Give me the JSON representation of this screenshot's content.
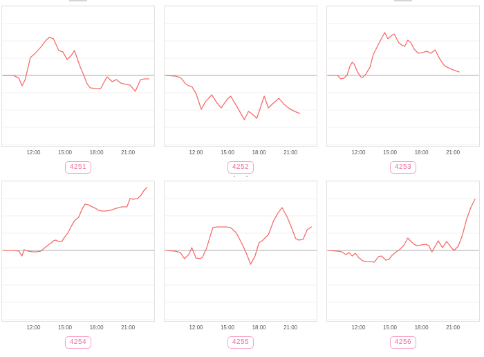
{
  "page": {
    "background": "#ffffff",
    "layout": {
      "rows": 2,
      "columns": 3,
      "grid": "horizontal-gridlines-only"
    }
  },
  "colors": {
    "line": "#f56c6c",
    "zero_line": "#a8a8a8",
    "gridline": "#f2f2f2",
    "panel_border": "#e2e2e2",
    "badge_text": "#ef6a9e",
    "badge_border": "#f7a1c4",
    "tick_text": "#555555"
  },
  "chart_data": [
    {
      "type": "line",
      "id_label": "4251",
      "title": "",
      "xlabel": "",
      "ylabel": "",
      "x_range": [
        9.0,
        23.5
      ],
      "ylim": [
        -101,
        101
      ],
      "zero_baseline": true,
      "clipped_title_fragment": "bar",
      "x_ticks": [
        12,
        15,
        18,
        21
      ],
      "x_tick_labels": [
        "12:00",
        "15:00",
        "18:00",
        "21:00"
      ],
      "series": [
        [
          9.1,
          0
        ],
        [
          10.1,
          0
        ],
        [
          10.6,
          -4
        ],
        [
          10.9,
          -15
        ],
        [
          11.2,
          -6
        ],
        [
          11.7,
          26
        ],
        [
          12.1,
          31
        ],
        [
          12.7,
          41
        ],
        [
          13.2,
          51
        ],
        [
          13.5,
          55
        ],
        [
          13.9,
          53
        ],
        [
          14.4,
          36
        ],
        [
          14.8,
          34
        ],
        [
          15.2,
          23
        ],
        [
          15.6,
          29
        ],
        [
          15.9,
          36
        ],
        [
          16.4,
          14
        ],
        [
          16.8,
          0
        ],
        [
          17.1,
          -12
        ],
        [
          17.4,
          -18
        ],
        [
          18.0,
          -19
        ],
        [
          18.4,
          -19
        ],
        [
          19.0,
          -2
        ],
        [
          19.5,
          -9
        ],
        [
          19.9,
          -6
        ],
        [
          20.3,
          -11
        ],
        [
          20.8,
          -13
        ],
        [
          21.2,
          -14
        ],
        [
          21.7,
          -23
        ],
        [
          22.2,
          -6
        ],
        [
          22.6,
          -5
        ],
        [
          23.0,
          -5
        ]
      ]
    },
    {
      "type": "line",
      "id_label": "4252",
      "title": "",
      "xlabel": "",
      "ylabel": "",
      "x_range": [
        9.0,
        23.5
      ],
      "ylim": [
        -101,
        101
      ],
      "zero_baseline": true,
      "clipped_title_fragment": "",
      "x_ticks": [
        12,
        15,
        18,
        21
      ],
      "x_tick_labels": [
        "12:00",
        "15:00",
        "18:00",
        "21:00"
      ],
      "series": [
        [
          9.1,
          0
        ],
        [
          10.0,
          -1
        ],
        [
          10.5,
          -3
        ],
        [
          10.8,
          -8
        ],
        [
          11.0,
          -12
        ],
        [
          11.3,
          -15
        ],
        [
          11.6,
          -16
        ],
        [
          12.0,
          -26
        ],
        [
          12.5,
          -49
        ],
        [
          12.9,
          -38
        ],
        [
          13.5,
          -28
        ],
        [
          14.0,
          -40
        ],
        [
          14.4,
          -47
        ],
        [
          15.0,
          -34
        ],
        [
          15.3,
          -30
        ],
        [
          15.9,
          -45
        ],
        [
          16.6,
          -64
        ],
        [
          17.0,
          -52
        ],
        [
          17.3,
          -55
        ],
        [
          17.8,
          -62
        ],
        [
          18.5,
          -30
        ],
        [
          18.9,
          -47
        ],
        [
          19.3,
          -41
        ],
        [
          19.9,
          -33
        ],
        [
          20.4,
          -42
        ],
        [
          20.9,
          -48
        ],
        [
          21.4,
          -52
        ],
        [
          21.9,
          -55
        ]
      ]
    },
    {
      "type": "line",
      "id_label": "4253",
      "title": "",
      "xlabel": "",
      "ylabel": "",
      "x_range": [
        9.0,
        23.5
      ],
      "ylim": [
        -101,
        101
      ],
      "zero_baseline": true,
      "clipped_title_fragment": "bar",
      "x_ticks": [
        12,
        15,
        18,
        21
      ],
      "x_tick_labels": [
        "12:00",
        "15:00",
        "18:00",
        "21:00"
      ],
      "series": [
        [
          9.1,
          0
        ],
        [
          10.0,
          0
        ],
        [
          10.3,
          -5
        ],
        [
          10.6,
          -4
        ],
        [
          10.9,
          0
        ],
        [
          11.2,
          14
        ],
        [
          11.4,
          19
        ],
        [
          11.6,
          16
        ],
        [
          11.9,
          5
        ],
        [
          12.2,
          -2
        ],
        [
          12.4,
          -3
        ],
        [
          12.7,
          2
        ],
        [
          13.1,
          12
        ],
        [
          13.4,
          30
        ],
        [
          13.9,
          45
        ],
        [
          14.5,
          62
        ],
        [
          14.8,
          53
        ],
        [
          15.1,
          57
        ],
        [
          15.4,
          60
        ],
        [
          15.8,
          48
        ],
        [
          16.1,
          44
        ],
        [
          16.4,
          42
        ],
        [
          16.7,
          51
        ],
        [
          17.0,
          47
        ],
        [
          17.3,
          38
        ],
        [
          17.7,
          32
        ],
        [
          18.1,
          33
        ],
        [
          18.5,
          35
        ],
        [
          18.9,
          32
        ],
        [
          19.3,
          37
        ],
        [
          19.7,
          25
        ],
        [
          20.2,
          14
        ],
        [
          20.7,
          10
        ],
        [
          21.2,
          7
        ],
        [
          21.6,
          5
        ]
      ]
    },
    {
      "type": "line",
      "id_label": "4254",
      "title": "",
      "xlabel": "",
      "ylabel": "",
      "x_range": [
        9.0,
        23.5
      ],
      "ylim": [
        -101,
        101
      ],
      "zero_baseline": true,
      "clipped_title_fragment": "",
      "x_ticks": [
        12,
        15,
        18,
        21
      ],
      "x_tick_labels": [
        "12:00",
        "15:00",
        "18:00",
        "21:00"
      ],
      "series": [
        [
          9.1,
          0
        ],
        [
          10.1,
          0
        ],
        [
          10.6,
          -1
        ],
        [
          10.9,
          -8
        ],
        [
          11.1,
          1
        ],
        [
          11.5,
          -1
        ],
        [
          11.9,
          -2
        ],
        [
          12.3,
          -2
        ],
        [
          12.7,
          -1
        ],
        [
          13.0,
          3
        ],
        [
          13.4,
          8
        ],
        [
          13.7,
          11
        ],
        [
          13.9,
          14
        ],
        [
          14.1,
          15
        ],
        [
          14.4,
          13
        ],
        [
          14.7,
          13
        ],
        [
          14.9,
          18
        ],
        [
          15.3,
          26
        ],
        [
          15.6,
          35
        ],
        [
          15.9,
          43
        ],
        [
          16.3,
          48
        ],
        [
          16.6,
          59
        ],
        [
          16.9,
          67
        ],
        [
          17.2,
          66
        ],
        [
          17.6,
          63
        ],
        [
          17.9,
          61
        ],
        [
          18.2,
          58
        ],
        [
          18.5,
          57
        ],
        [
          18.9,
          57
        ],
        [
          19.3,
          58
        ],
        [
          19.9,
          61
        ],
        [
          20.4,
          63
        ],
        [
          20.9,
          63
        ],
        [
          21.2,
          75
        ],
        [
          21.5,
          74
        ],
        [
          21.9,
          75
        ],
        [
          22.2,
          79
        ],
        [
          22.5,
          86
        ],
        [
          22.8,
          91
        ]
      ]
    },
    {
      "type": "line",
      "id_label": "4255",
      "title": "",
      "xlabel": "",
      "ylabel": "",
      "x_range": [
        9.0,
        23.5
      ],
      "ylim": [
        -101,
        101
      ],
      "zero_baseline": true,
      "clipped_title_fragment": "dots",
      "x_ticks": [
        12,
        15,
        18,
        21
      ],
      "x_tick_labels": [
        "12:00",
        "15:00",
        "18:00",
        "21:00"
      ],
      "series": [
        [
          9.1,
          0
        ],
        [
          10.0,
          -1
        ],
        [
          10.5,
          -3
        ],
        [
          10.9,
          -12
        ],
        [
          11.3,
          -6
        ],
        [
          11.6,
          4
        ],
        [
          12.0,
          -11
        ],
        [
          12.4,
          -12
        ],
        [
          12.6,
          -10
        ],
        [
          13.0,
          3
        ],
        [
          13.3,
          18
        ],
        [
          13.6,
          33
        ],
        [
          14.0,
          34
        ],
        [
          14.4,
          34
        ],
        [
          14.9,
          34
        ],
        [
          15.3,
          33
        ],
        [
          15.8,
          26
        ],
        [
          16.1,
          18
        ],
        [
          16.5,
          6
        ],
        [
          16.8,
          -4
        ],
        [
          17.2,
          -20
        ],
        [
          17.6,
          -9
        ],
        [
          18.0,
          11
        ],
        [
          18.3,
          14
        ],
        [
          18.9,
          23
        ],
        [
          19.4,
          43
        ],
        [
          19.8,
          54
        ],
        [
          20.2,
          62
        ],
        [
          20.7,
          48
        ],
        [
          21.1,
          33
        ],
        [
          21.5,
          17
        ],
        [
          21.8,
          15
        ],
        [
          22.2,
          16
        ],
        [
          22.6,
          30
        ],
        [
          23.0,
          34
        ]
      ]
    },
    {
      "type": "line",
      "id_label": "4256",
      "title": "",
      "xlabel": "",
      "ylabel": "",
      "x_range": [
        9.0,
        23.5
      ],
      "ylim": [
        -101,
        101
      ],
      "zero_baseline": true,
      "clipped_title_fragment": "",
      "x_ticks": [
        12,
        15,
        18,
        21
      ],
      "x_tick_labels": [
        "12:00",
        "15:00",
        "18:00",
        "21:00"
      ],
      "series": [
        [
          9.1,
          0
        ],
        [
          10.0,
          -1
        ],
        [
          10.4,
          -2
        ],
        [
          10.8,
          -6
        ],
        [
          11.1,
          -3
        ],
        [
          11.4,
          -8
        ],
        [
          11.7,
          -4
        ],
        [
          12.0,
          -10
        ],
        [
          12.4,
          -15
        ],
        [
          12.8,
          -16
        ],
        [
          13.2,
          -16
        ],
        [
          13.5,
          -17
        ],
        [
          13.9,
          -9
        ],
        [
          14.2,
          -8
        ],
        [
          14.6,
          -14
        ],
        [
          14.9,
          -13
        ],
        [
          15.2,
          -7
        ],
        [
          15.6,
          -2
        ],
        [
          15.9,
          1
        ],
        [
          16.3,
          7
        ],
        [
          16.7,
          18
        ],
        [
          17.0,
          13
        ],
        [
          17.3,
          9
        ],
        [
          17.6,
          7
        ],
        [
          18.0,
          8
        ],
        [
          18.4,
          9
        ],
        [
          18.7,
          7
        ],
        [
          19.0,
          -2
        ],
        [
          19.3,
          6
        ],
        [
          19.6,
          14
        ],
        [
          20.0,
          4
        ],
        [
          20.4,
          13
        ],
        [
          20.8,
          5
        ],
        [
          21.1,
          0
        ],
        [
          21.5,
          6
        ],
        [
          21.9,
          22
        ],
        [
          22.3,
          45
        ],
        [
          22.7,
          62
        ],
        [
          23.1,
          74
        ]
      ]
    }
  ]
}
